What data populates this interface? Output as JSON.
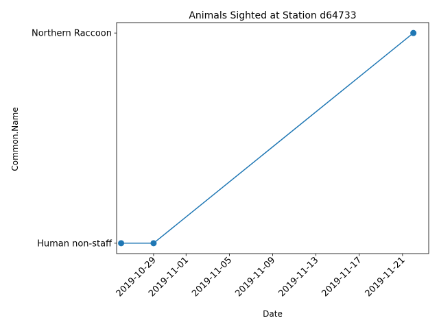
{
  "chart_data": {
    "type": "line",
    "title": "Animals Sighted at Station d64733",
    "xlabel": "Date",
    "ylabel": "Common.Name",
    "x_scale": "date",
    "y_scale": "categorical",
    "categories_y": [
      "Human non-staff",
      "Northern Raccoon"
    ],
    "x_ticks": [
      "2019-10-29",
      "2019-11-01",
      "2019-11-05",
      "2019-11-09",
      "2019-11-13",
      "2019-11-17",
      "2019-11-21"
    ],
    "xlim": [
      "2019-10-25T14:00",
      "2019-11-23T10:00"
    ],
    "grid": false,
    "legend": "none",
    "line_color": "#1f77b4",
    "series": [
      {
        "x": [
          "2019-10-26",
          "2019-10-29",
          "2019-11-22"
        ],
        "y": [
          "Human non-staff",
          "Human non-staff",
          "Northern Raccoon"
        ]
      }
    ]
  }
}
